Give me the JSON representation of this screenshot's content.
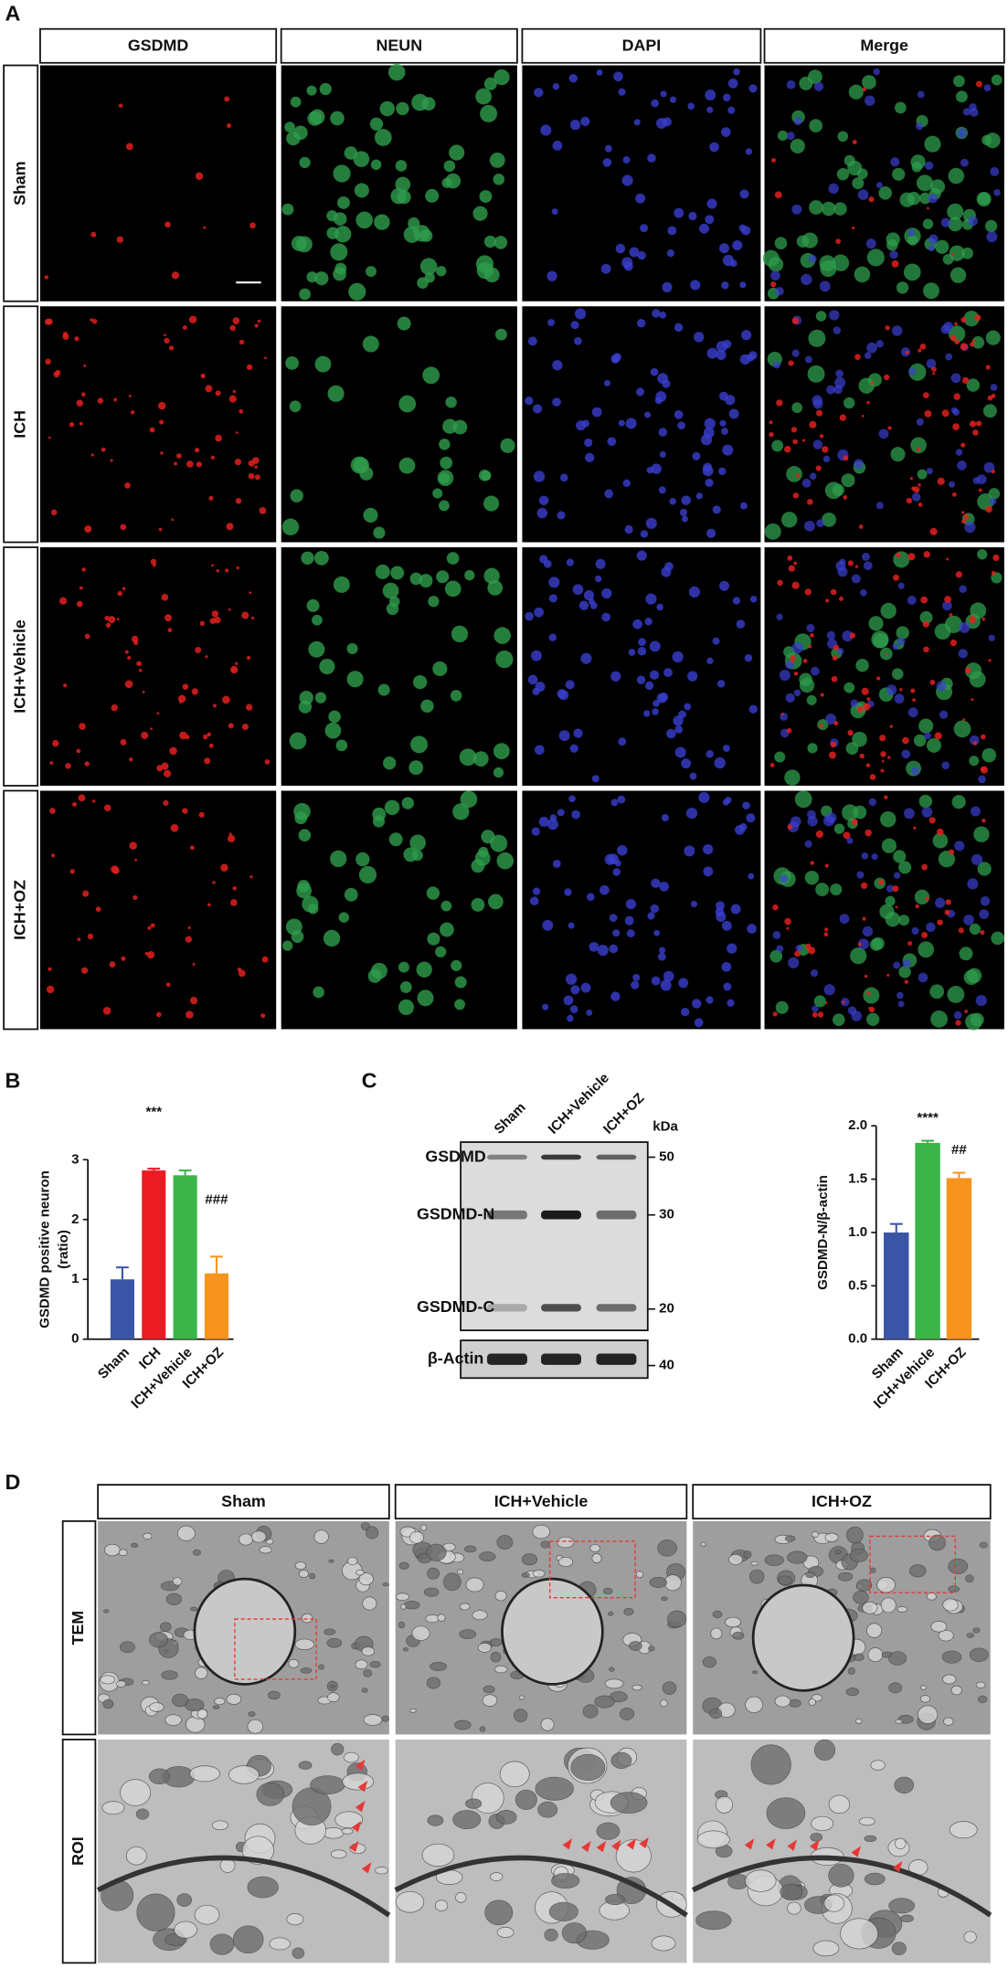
{
  "panels": {
    "a": "A",
    "b": "B",
    "c": "C",
    "d": "D"
  },
  "if_panel": {
    "columns": [
      "GSDMD",
      "NEUN",
      "DAPI",
      "Merge"
    ],
    "rows": [
      "Sham",
      "ICH",
      "ICH+Vehicle",
      "ICH+OZ"
    ]
  },
  "blot": {
    "lanes": [
      "Sham",
      "ICH+Vehicle",
      "ICH+OZ"
    ],
    "rows": [
      "GSDMD",
      "GSDMD-N",
      "GSDMD-C",
      "β-Actin"
    ],
    "unit": "kDa",
    "markers": [
      50,
      30,
      20,
      40
    ]
  },
  "tem_panel": {
    "columns": [
      "Sham",
      "ICH+Vehicle",
      "ICH+OZ"
    ],
    "rows": [
      "TEM",
      "ROI"
    ]
  },
  "chart_data": [
    {
      "type": "bar",
      "ylabel": [
        "GSDMD positive neuron",
        "(ratio)"
      ],
      "categories": [
        "Sham",
        "ICH",
        "ICH+Vehicle",
        "ICH+OZ"
      ],
      "values": [
        1.0,
        2.82,
        2.74,
        1.1
      ],
      "errors": [
        0.2,
        0.03,
        0.08,
        0.28
      ],
      "colors": [
        "#3b55a6",
        "#ec1c24",
        "#3bb54a",
        "#f7941d"
      ],
      "ylim": [
        0,
        3
      ],
      "yticks": [
        0,
        1,
        2,
        3
      ],
      "annotations": [
        {
          "text": "***",
          "category": 1
        },
        {
          "text": "###",
          "category": 3
        }
      ]
    },
    {
      "type": "bar",
      "ylabel": [
        "GSDMD-N/β-actin"
      ],
      "categories": [
        "Sham",
        "ICH+Vehicle",
        "ICH+OZ"
      ],
      "values": [
        1.0,
        1.84,
        1.51
      ],
      "errors": [
        0.08,
        0.02,
        0.05
      ],
      "colors": [
        "#3b55a6",
        "#3bb54a",
        "#f7941d"
      ],
      "ylim": [
        0,
        2
      ],
      "yticks": [
        {
          "value": 0,
          "label": "0.0"
        },
        0.5,
        {
          "value": 1,
          "label": "1.0"
        },
        1.5,
        {
          "value": 2,
          "label": "2.0"
        }
      ],
      "annotations": [
        {
          "text": "****",
          "category": 1
        },
        {
          "text": "##",
          "category": 2
        }
      ]
    }
  ]
}
